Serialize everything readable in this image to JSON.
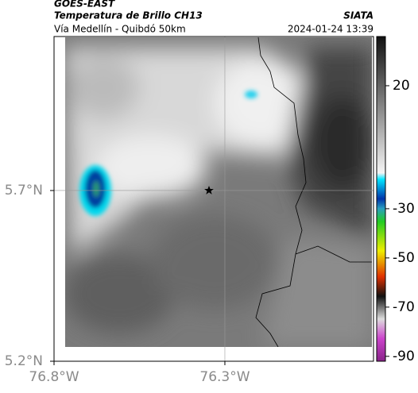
{
  "header": {
    "satellite": "GOES-EAST",
    "product": "Temperatura de Brillo CH13",
    "region": "Vía Medellín - Quibdó 50km",
    "source": "SIATA",
    "datetime": "2024-01-24 13:39"
  },
  "map": {
    "xlim": [
      -76.8,
      -75.865
    ],
    "ylim": [
      5.2,
      6.151
    ],
    "xticks": [
      {
        "value": -76.8,
        "label": "76.8°W"
      },
      {
        "value": -76.3,
        "label": "76.3°W"
      }
    ],
    "yticks": [
      {
        "value": 5.7,
        "label": "5.7°N"
      },
      {
        "value": 5.2,
        "label": "5.2°N"
      }
    ]
  },
  "colorbar": {
    "lim": [
      -92,
      40
    ],
    "ticks": [
      20,
      -30,
      -50,
      -70,
      -90
    ]
  }
}
